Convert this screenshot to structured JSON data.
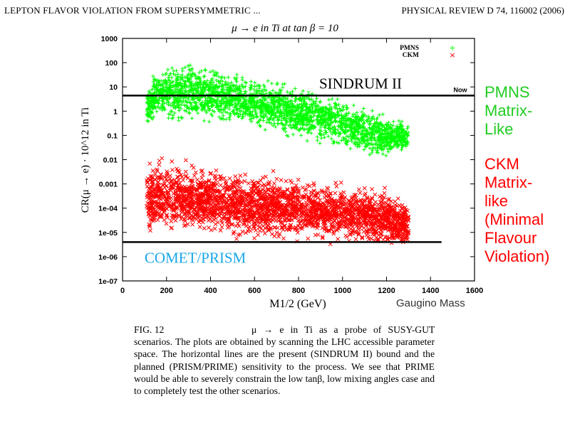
{
  "header": {
    "left": "LEPTON FLAVOR VIOLATION FROM SUPERSYMMETRIC ...",
    "right": "PHYSICAL REVIEW D 74, 116002 (2006)"
  },
  "side_labels": {
    "pmns": [
      "PMNS",
      "Matrix-",
      "Like"
    ],
    "ckm": [
      "CKM",
      "Matrix-",
      "like",
      "(Minimal",
      "Flavour",
      "Violation)"
    ],
    "gaugino": "Gaugino Mass"
  },
  "caption": {
    "fig": "FIG. 12",
    "text_first": "μ → e in Ti as a probe of SUSY-GUT",
    "text_rest": "scenarios. The plots are obtained by scanning the LHC accessible parameter space. The horizontal lines are the present (SINDRUM II) bound and the planned (PRISM/PRIME) sensitivity to the process. We see that PRIME would be able to severely constrain the low tanβ, low mixing angles case and to completely test the other scenarios."
  },
  "colors": {
    "pmns": "#00ff00",
    "ckm": "#ff0000",
    "comet": "#1aa7e8",
    "axis": "#000000"
  },
  "chart_data": {
    "type": "scatter",
    "title": "μ → e in Ti at tan β = 10",
    "xlabel": "M1/2 (GeV)",
    "ylabel": "CR(μ → e) · 10^12 in Ti",
    "xlim": [
      0,
      1600
    ],
    "ylim": [
      1e-07,
      1000
    ],
    "yscale": "log",
    "xticks": [
      0,
      200,
      400,
      600,
      800,
      1000,
      1200,
      1400,
      1600
    ],
    "yticks": [
      {
        "v": 1000,
        "label": "1000"
      },
      {
        "v": 100,
        "label": "100"
      },
      {
        "v": 10,
        "label": "10"
      },
      {
        "v": 1,
        "label": "1"
      },
      {
        "v": 0.1,
        "label": "0.1"
      },
      {
        "v": 0.01,
        "label": "0.01"
      },
      {
        "v": 0.001,
        "label": "0.001"
      },
      {
        "v": 0.0001,
        "label": "1e-04"
      },
      {
        "v": 1e-05,
        "label": "1e-05"
      },
      {
        "v": 1e-06,
        "label": "1e-06"
      },
      {
        "v": 1e-07,
        "label": "1e-07"
      }
    ],
    "legend": {
      "position": "top-right",
      "entries": [
        {
          "name": "PMNS",
          "marker": "+"
        },
        {
          "name": "CKM",
          "marker": "x"
        }
      ]
    },
    "series": [
      {
        "name": "PMNS",
        "marker": "+",
        "color": "#00ff00",
        "envelope": [
          {
            "x": 110,
            "lo": 0.15,
            "hi": 12
          },
          {
            "x": 150,
            "lo": 0.25,
            "hi": 80
          },
          {
            "x": 300,
            "lo": 0.2,
            "hi": 200
          },
          {
            "x": 500,
            "lo": 0.2,
            "hi": 50
          },
          {
            "x": 800,
            "lo": 0.05,
            "hi": 15
          },
          {
            "x": 1000,
            "lo": 0.02,
            "hi": 5
          },
          {
            "x": 1200,
            "lo": 0.008,
            "hi": 1
          },
          {
            "x": 1300,
            "lo": 0.02,
            "hi": 0.4
          }
        ]
      },
      {
        "name": "CKM",
        "marker": "x",
        "color": "#ff0000",
        "envelope": [
          {
            "x": 110,
            "lo": 7e-06,
            "hi": 0.01
          },
          {
            "x": 200,
            "lo": 5e-06,
            "hi": 0.02
          },
          {
            "x": 300,
            "lo": 5e-06,
            "hi": 0.01
          },
          {
            "x": 600,
            "lo": 4e-06,
            "hi": 0.005
          },
          {
            "x": 900,
            "lo": 3e-06,
            "hi": 0.002
          },
          {
            "x": 1200,
            "lo": 1.5e-06,
            "hi": 0.001
          },
          {
            "x": 1300,
            "lo": 2e-06,
            "hi": 0.0002
          }
        ]
      }
    ],
    "reference_lines": [
      {
        "name": "SINDRUM II",
        "y": 4.4,
        "x_range": [
          0,
          1600
        ],
        "note": "Now",
        "label_color": "#000000"
      },
      {
        "name": "COMET/PRISM",
        "y": 4e-06,
        "x_range": [
          0,
          1450
        ],
        "label_color": "#1aa7e8"
      }
    ]
  }
}
